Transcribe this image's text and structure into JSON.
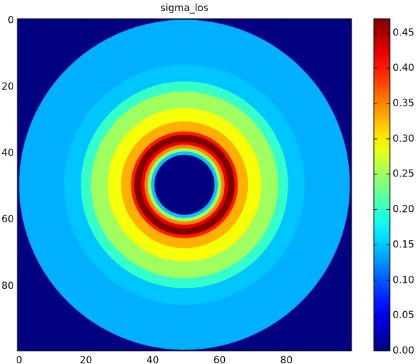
{
  "chart_data": {
    "type": "heatmap",
    "title": "sigma_los",
    "radius": [
      49.5,
      36,
      31,
      28,
      23,
      19,
      16,
      15,
      13,
      12,
      11,
      10,
      9
    ],
    "values": [
      0.14,
      0.15,
      0.2,
      0.25,
      0.29,
      0.33,
      0.4,
      0.47,
      0.42,
      0.35,
      0.25,
      0.15,
      0
    ],
    "background": 0,
    "xlim": [
      -0.5,
      99.5
    ],
    "ylim": [
      99.5,
      -0.5
    ],
    "xticks": [
      0,
      20,
      40,
      60,
      80
    ],
    "yticks": [
      0,
      20,
      40,
      60,
      80
    ],
    "colormap": "jet",
    "clim": [
      0,
      0.47
    ],
    "colorbar_ticks": [
      {
        "value": 0,
        "label": "0.00"
      },
      {
        "value": 0.05,
        "label": "0.05"
      },
      {
        "value": 0.1,
        "label": "0.10"
      },
      {
        "value": 0.15,
        "label": "0.15"
      },
      {
        "value": 0.2,
        "label": "0.20"
      },
      {
        "value": 0.25,
        "label": "0.25"
      },
      {
        "value": 0.3,
        "label": "0.30"
      },
      {
        "value": 0.35,
        "label": "0.35"
      },
      {
        "value": 0.4,
        "label": "0.40"
      },
      {
        "value": 0.45,
        "label": "0.45"
      }
    ]
  }
}
